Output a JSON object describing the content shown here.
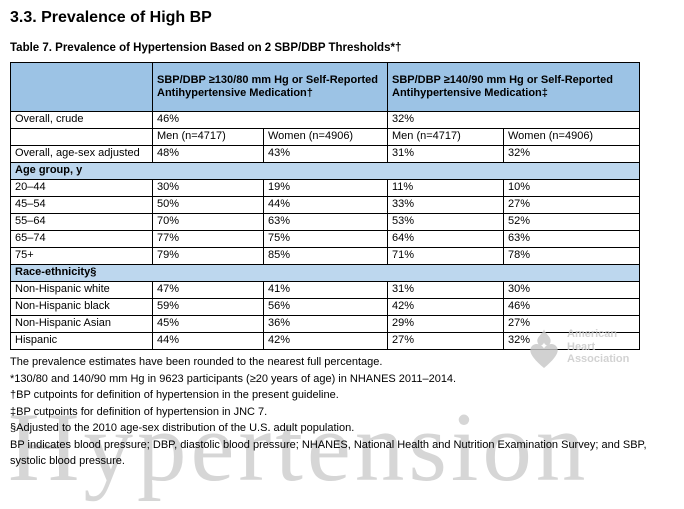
{
  "heading": "3.3. Prevalence of High BP",
  "caption": "Table 7. Prevalence of Hypertension Based on 2 SBP/DBP Thresholds*†",
  "colors": {
    "header_blue": "#9cc3e5",
    "section_blue": "#bdd7ee",
    "border": "#000000",
    "watermark_gray": "#d6d6d6"
  },
  "table": {
    "group_headers": [
      "SBP/DBP ≥130/80 mm Hg or Self-Reported Antihypertensive Medication†",
      "SBP/DBP ≥140/90 mm Hg or Self-Reported Antihypertensive Medication‡"
    ],
    "rows": [
      {
        "type": "data-span",
        "label": "Overall, crude",
        "values": [
          "46%",
          "32%"
        ]
      },
      {
        "type": "data",
        "label": "",
        "values": [
          "Men (n=4717)",
          "Women (n=4906)",
          "Men (n=4717)",
          "Women (n=4906)"
        ]
      },
      {
        "type": "data",
        "label": "Overall, age-sex adjusted",
        "values": [
          "48%",
          "43%",
          "31%",
          "32%"
        ]
      },
      {
        "type": "section",
        "label": "Age group, y"
      },
      {
        "type": "data",
        "label": "20–44",
        "values": [
          "30%",
          "19%",
          "11%",
          "10%"
        ]
      },
      {
        "type": "data",
        "label": "45–54",
        "values": [
          "50%",
          "44%",
          "33%",
          "27%"
        ]
      },
      {
        "type": "data",
        "label": "55–64",
        "values": [
          "70%",
          "63%",
          "53%",
          "52%"
        ]
      },
      {
        "type": "data",
        "label": "65–74",
        "values": [
          "77%",
          "75%",
          "64%",
          "63%"
        ]
      },
      {
        "type": "data",
        "label": "75+",
        "values": [
          "79%",
          "85%",
          "71%",
          "78%"
        ]
      },
      {
        "type": "section",
        "label": "Race-ethnicity§"
      },
      {
        "type": "data",
        "label": "Non-Hispanic white",
        "values": [
          "47%",
          "41%",
          "31%",
          "30%"
        ]
      },
      {
        "type": "data",
        "label": "Non-Hispanic black",
        "values": [
          "59%",
          "56%",
          "42%",
          "46%"
        ]
      },
      {
        "type": "data",
        "label": "Non-Hispanic Asian",
        "values": [
          "45%",
          "36%",
          "29%",
          "27%"
        ]
      },
      {
        "type": "data",
        "label": "Hispanic",
        "values": [
          "44%",
          "42%",
          "27%",
          "32%"
        ]
      }
    ]
  },
  "footnotes": [
    "The prevalence estimates have been rounded to the nearest full percentage.",
    "*130/80 and 140/90 mm Hg in 9623 participants (≥20 years of age) in NHANES 2011–2014.",
    "†BP cutpoints for definition of hypertension in the present guideline.",
    "‡BP cutpoints for definition of hypertension in JNC 7.",
    "§Adjusted to the 2010 age-sex distribution of the U.S. adult population.",
    "BP indicates blood pressure; DBP, diastolic blood pressure; NHANES, National Health and Nutrition Examination Survey; and SBP, systolic blood pressure."
  ],
  "watermarks": {
    "journal": "Hypertension",
    "aha_lines": [
      "American",
      "Heart",
      "Association"
    ]
  }
}
